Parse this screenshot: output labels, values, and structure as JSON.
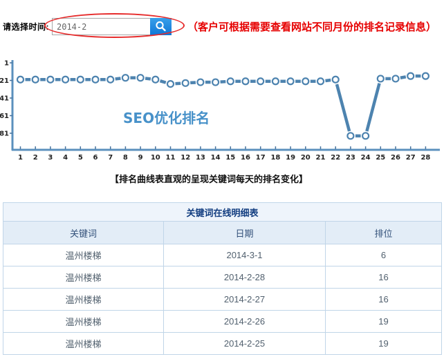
{
  "form": {
    "label": "请选择时间:",
    "input_value": "2014-2",
    "search_button": "search",
    "annotation": "（客户可根据需要查看网站不同月份的排名记录信息）"
  },
  "chart_data": {
    "type": "line",
    "title": "SEO优化排名",
    "xlabel": "",
    "ylabel": "",
    "x": [
      1,
      2,
      3,
      4,
      5,
      6,
      7,
      8,
      9,
      10,
      11,
      12,
      13,
      14,
      15,
      16,
      17,
      18,
      19,
      20,
      21,
      22,
      23,
      24,
      25,
      26,
      27,
      28
    ],
    "values": [
      20,
      20,
      20,
      20,
      20,
      20,
      20,
      18,
      18,
      20,
      25,
      24,
      23,
      23,
      22,
      22,
      22,
      22,
      22,
      22,
      22,
      20,
      84,
      84,
      19,
      19,
      16,
      16
    ],
    "y_ticks": [
      1,
      21,
      41,
      61,
      81
    ],
    "ylim": [
      1,
      100
    ],
    "y_inverted": true,
    "grid": false,
    "legend": "none",
    "line_color": "#4d83af",
    "axis_color": "#5b90bd",
    "tick_text_color": "#222222",
    "title_color": "#4791c9"
  },
  "caption": "【排名曲线表直观的呈现关键词每天的排名变化】",
  "table": {
    "title": "关键词在线明细表",
    "columns": [
      "关键词",
      "日期",
      "排位"
    ],
    "rows": [
      [
        "温州楼梯",
        "2014-3-1",
        "6"
      ],
      [
        "温州楼梯",
        "2014-2-28",
        "16"
      ],
      [
        "温州楼梯",
        "2014-2-27",
        "16"
      ],
      [
        "温州楼梯",
        "2014-2-26",
        "19"
      ],
      [
        "温州楼梯",
        "2014-2-25",
        "19"
      ]
    ]
  },
  "colors": {
    "accent_blue": "#1787e0",
    "annotation_red": "#e60000",
    "table_border": "#c0d5e8",
    "table_title_bg": "#eef4fb",
    "table_header_bg": "#e3edf7"
  }
}
